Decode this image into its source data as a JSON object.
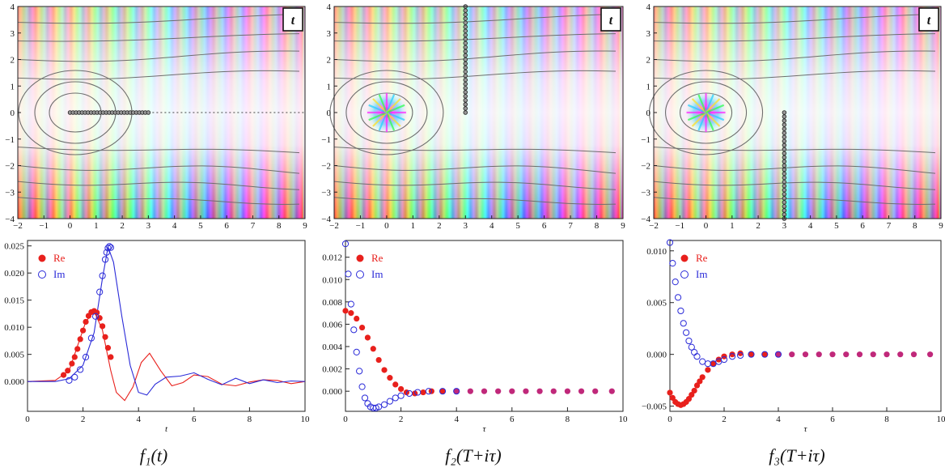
{
  "colors": {
    "re": "#e8201c",
    "im": "#2a2ad8",
    "axis": "#222222",
    "contour": "#6e6e6e",
    "point_dark": "#2c2c2c",
    "point_magenta": "#c0287a"
  },
  "panels": [
    {
      "id": "f1",
      "caption": "f₁(t)",
      "badge": "t",
      "chart_data": [
        {
          "type": "heatmap",
          "title": "",
          "xlim": [
            -2,
            9
          ],
          "ylim": [
            -4,
            4
          ],
          "xticks": [
            -2,
            -1,
            0,
            1,
            2,
            3,
            4,
            5,
            6,
            7,
            8,
            9
          ],
          "yticks": [
            -4,
            -3,
            -2,
            -1,
            0,
            1,
            2,
            3,
            4
          ],
          "contour_center": [
            0.2,
            0
          ],
          "sample_points": {
            "x": [
              0,
              3
            ],
            "y": [
              0,
              0
            ],
            "orientation": "horizontal"
          },
          "dotted_line": {
            "from": [
              3,
              0
            ],
            "to": [
              9,
              0
            ]
          },
          "pole": null
        },
        {
          "type": "line",
          "xlabel": "t",
          "ylabel": "",
          "xlim": [
            0,
            10
          ],
          "ylim": [
            -0.0055,
            0.026
          ],
          "xticks": [
            0,
            2,
            4,
            6,
            8,
            10
          ],
          "yticks": [
            0.0,
            0.005,
            0.01,
            0.015,
            0.02,
            0.025
          ],
          "ytick_labels": [
            "0.000",
            "0.005",
            "0.010",
            "0.015",
            "0.020",
            "0.025"
          ],
          "legend": [
            "Re",
            "Im"
          ],
          "series": [
            {
              "name": "Re (line)",
              "x": [
                0,
                1,
                1.5,
                1.8,
                2.1,
                2.4,
                2.7,
                3.0,
                3.2,
                3.5,
                3.8,
                4.1,
                4.4,
                4.8,
                5.2,
                5.6,
                6.0,
                6.5,
                7.0,
                7.5,
                8.0,
                8.5,
                9.0,
                9.5,
                10
              ],
              "values": [
                0,
                0.0002,
                0.002,
                0.0065,
                0.011,
                0.013,
                0.0095,
                0.002,
                -0.002,
                -0.0035,
                -0.001,
                0.0035,
                0.0052,
                0.002,
                -0.0008,
                -0.0002,
                0.0012,
                0.0009,
                -0.0005,
                -0.0008,
                -0.0001,
                0.0003,
                0.0002,
                -0.0004,
                0
              ]
            },
            {
              "name": "Im (line)",
              "x": [
                0,
                1,
                1.5,
                2.0,
                2.4,
                2.7,
                2.9,
                3.1,
                3.4,
                3.7,
                4.0,
                4.3,
                4.6,
                5.0,
                5.5,
                6.0,
                6.5,
                7.0,
                7.5,
                8.0,
                8.5,
                9.0,
                9.5,
                10
              ],
              "values": [
                0,
                0,
                0.0005,
                0.003,
                0.009,
                0.019,
                0.0248,
                0.022,
                0.012,
                0.003,
                -0.002,
                -0.0025,
                -0.0005,
                0.0008,
                0.001,
                0.0016,
                0.0004,
                -0.0006,
                0.0006,
                -0.0004,
                0.0003,
                -0.0002,
                0.0001,
                0
              ]
            },
            {
              "name": "Re",
              "marker": "filled",
              "x": [
                1.3,
                1.45,
                1.6,
                1.7,
                1.8,
                1.9,
                2.0,
                2.1,
                2.2,
                2.3,
                2.4,
                2.5,
                2.6,
                2.7,
                2.8,
                2.9,
                3.0
              ],
              "values": [
                0.0012,
                0.002,
                0.0033,
                0.0045,
                0.006,
                0.0078,
                0.0094,
                0.011,
                0.0121,
                0.0128,
                0.013,
                0.0127,
                0.0117,
                0.0102,
                0.0082,
                0.0062,
                0.0045
              ]
            },
            {
              "name": "Im",
              "marker": "open",
              "x": [
                1.5,
                1.7,
                1.9,
                2.1,
                2.3,
                2.45,
                2.6,
                2.7,
                2.8,
                2.85,
                2.9,
                2.95,
                3.0
              ],
              "values": [
                0.0002,
                0.0008,
                0.0022,
                0.0045,
                0.008,
                0.012,
                0.0165,
                0.0195,
                0.0225,
                0.0238,
                0.0246,
                0.0249,
                0.0247
              ]
            }
          ]
        }
      ]
    },
    {
      "id": "f2",
      "caption": "f₂(T+iτ)",
      "badge": "t",
      "chart_data": [
        {
          "type": "heatmap",
          "title": "",
          "xlim": [
            -2,
            9
          ],
          "ylim": [
            -4,
            4
          ],
          "xticks": [
            -2,
            -1,
            0,
            1,
            2,
            3,
            4,
            5,
            6,
            7,
            8,
            9
          ],
          "yticks": [
            -4,
            -3,
            -2,
            -1,
            0,
            1,
            2,
            3,
            4
          ],
          "contour_center": [
            0,
            0
          ],
          "sample_points": {
            "x": [
              3,
              3
            ],
            "y": [
              0,
              4
            ],
            "orientation": "vertical"
          },
          "dotted_line": null,
          "pole": [
            0,
            0
          ]
        },
        {
          "type": "scatter",
          "xlabel": "τ",
          "ylabel": "",
          "xlim": [
            0,
            10
          ],
          "ylim": [
            -0.0018,
            0.0135
          ],
          "xticks": [
            0,
            2,
            4,
            6,
            8,
            10
          ],
          "yticks": [
            0.0,
            0.002,
            0.004,
            0.006,
            0.008,
            0.01,
            0.012
          ],
          "ytick_labels": [
            "0.000",
            "0.002",
            "0.004",
            "0.006",
            "0.008",
            "0.010",
            "0.012"
          ],
          "legend": [
            "Re",
            "Im"
          ],
          "series": [
            {
              "name": "Re",
              "marker": "filled",
              "x": [
                0,
                0.2,
                0.4,
                0.6,
                0.8,
                1.0,
                1.2,
                1.4,
                1.6,
                1.8,
                2.0,
                2.2,
                2.5,
                2.8,
                3.1,
                3.5,
                4.0,
                4.5,
                5.0,
                5.5,
                6.0,
                6.5,
                7.0,
                7.5,
                8.0,
                8.5,
                9.0,
                9.6
              ],
              "values": [
                0.0072,
                0.007,
                0.0065,
                0.0057,
                0.0048,
                0.0038,
                0.0028,
                0.0019,
                0.0012,
                0.0006,
                0.0002,
                -0.0001,
                -0.0002,
                -0.0001,
                0,
                0,
                0,
                0,
                0,
                0,
                0,
                0,
                0,
                0,
                0,
                0,
                0,
                0
              ]
            },
            {
              "name": "Im",
              "marker": "open",
              "x": [
                0,
                0.1,
                0.2,
                0.3,
                0.4,
                0.5,
                0.6,
                0.7,
                0.8,
                0.9,
                1.0,
                1.1,
                1.2,
                1.4,
                1.6,
                1.8,
                2.0,
                2.3,
                2.6,
                3.0,
                3.5,
                4.0
              ],
              "values": [
                0.0132,
                0.0105,
                0.0078,
                0.0055,
                0.0035,
                0.0018,
                0.0004,
                -0.0006,
                -0.0011,
                -0.0014,
                -0.0015,
                -0.0015,
                -0.0014,
                -0.0012,
                -0.0009,
                -0.0006,
                -0.0004,
                -0.0002,
                -0.0001,
                0,
                0,
                0
              ]
            }
          ]
        }
      ]
    },
    {
      "id": "f3",
      "caption": "f₃(T+iτ)",
      "badge": "t",
      "chart_data": [
        {
          "type": "heatmap",
          "title": "",
          "xlim": [
            -2,
            9
          ],
          "ylim": [
            -4,
            4
          ],
          "xticks": [
            -2,
            -1,
            0,
            1,
            2,
            3,
            4,
            5,
            6,
            7,
            8,
            9
          ],
          "yticks": [
            -4,
            -3,
            -2,
            -1,
            0,
            1,
            2,
            3,
            4
          ],
          "contour_center": [
            0,
            0
          ],
          "sample_points": {
            "x": [
              3,
              3
            ],
            "y": [
              0,
              -4
            ],
            "orientation": "vertical"
          },
          "dotted_line": null,
          "pole": [
            0,
            0
          ]
        },
        {
          "type": "scatter",
          "xlabel": "τ",
          "ylabel": "",
          "xlim": [
            0,
            10
          ],
          "ylim": [
            -0.0055,
            0.011
          ],
          "xticks": [
            0,
            2,
            4,
            6,
            8,
            10
          ],
          "yticks": [
            -0.005,
            0.0,
            0.005,
            0.01
          ],
          "ytick_labels": [
            "-0.005",
            "0.000",
            "0.005",
            "0.010"
          ],
          "legend": [
            "Re",
            "Im"
          ],
          "series": [
            {
              "name": "Re",
              "marker": "filled",
              "x": [
                0,
                0.1,
                0.2,
                0.3,
                0.4,
                0.5,
                0.6,
                0.7,
                0.8,
                0.9,
                1.0,
                1.1,
                1.2,
                1.4,
                1.6,
                1.8,
                2.0,
                2.3,
                2.6,
                3.0,
                3.5,
                4.0,
                4.5,
                5.0,
                5.5,
                6.0,
                6.5,
                7.0,
                7.5,
                8.0,
                8.5,
                9.0,
                9.6
              ],
              "values": [
                -0.0037,
                -0.0042,
                -0.0046,
                -0.0048,
                -0.0049,
                -0.0048,
                -0.0046,
                -0.0043,
                -0.0039,
                -0.0035,
                -0.003,
                -0.0026,
                -0.0022,
                -0.0015,
                -0.0009,
                -0.0005,
                -0.0002,
                0,
                0.0001,
                0,
                0,
                0,
                0,
                0,
                0,
                0,
                0,
                0,
                0,
                0,
                0,
                0,
                0
              ]
            },
            {
              "name": "Im",
              "marker": "open",
              "x": [
                0,
                0.1,
                0.2,
                0.3,
                0.4,
                0.5,
                0.6,
                0.7,
                0.8,
                0.9,
                1.0,
                1.2,
                1.4,
                1.6,
                1.8,
                2.0,
                2.3,
                2.6,
                3.0,
                3.5,
                4.0
              ],
              "values": [
                0.0108,
                0.0088,
                0.007,
                0.0055,
                0.0042,
                0.003,
                0.0021,
                0.0013,
                0.0007,
                0.0002,
                -0.0002,
                -0.0007,
                -0.0009,
                -0.0009,
                -0.0007,
                -0.0005,
                -0.0002,
                -0.0001,
                0,
                0,
                0
              ]
            }
          ]
        }
      ]
    }
  ]
}
